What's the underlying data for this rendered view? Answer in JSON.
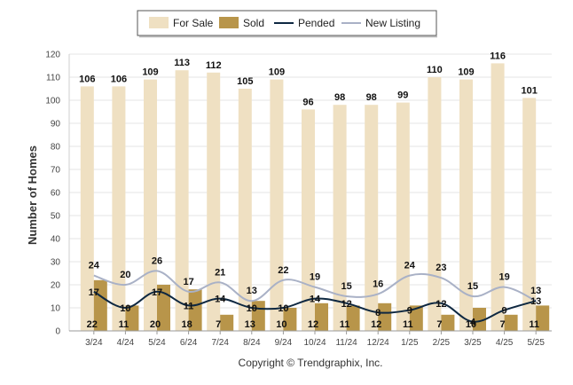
{
  "chart_data": {
    "type": "bar",
    "categories": [
      "3/24",
      "4/24",
      "5/24",
      "6/24",
      "7/24",
      "8/24",
      "9/24",
      "10/24",
      "11/24",
      "12/24",
      "1/25",
      "2/25",
      "3/25",
      "4/25",
      "5/25"
    ],
    "ylabel": "Number of Homes",
    "ylim": [
      0,
      120
    ],
    "yticks": [
      0,
      10,
      20,
      30,
      40,
      50,
      60,
      70,
      80,
      90,
      100,
      110,
      120
    ],
    "grid": true,
    "legend_position": "top-center",
    "series": [
      {
        "name": "For Sale",
        "kind": "bar",
        "color": "#efe0c2",
        "values": [
          106,
          106,
          109,
          113,
          112,
          105,
          109,
          96,
          98,
          98,
          99,
          110,
          109,
          116,
          101
        ]
      },
      {
        "name": "Sold",
        "kind": "bar",
        "color": "#b8954a",
        "values": [
          22,
          11,
          20,
          18,
          7,
          13,
          10,
          12,
          11,
          12,
          11,
          7,
          10,
          7,
          11
        ]
      },
      {
        "name": "Pended",
        "kind": "line",
        "color": "#0e2841",
        "values": [
          17,
          10,
          17,
          11,
          14,
          10,
          10,
          14,
          12,
          8,
          9,
          12,
          4,
          9,
          13
        ]
      },
      {
        "name": "New Listing",
        "kind": "line",
        "color": "#a9b1c6",
        "values": [
          24,
          20,
          26,
          17,
          21,
          13,
          22,
          19,
          15,
          16,
          24,
          23,
          15,
          19,
          13
        ]
      }
    ]
  },
  "footer": {
    "copyright": "Copyright © Trendgraphix, Inc."
  }
}
